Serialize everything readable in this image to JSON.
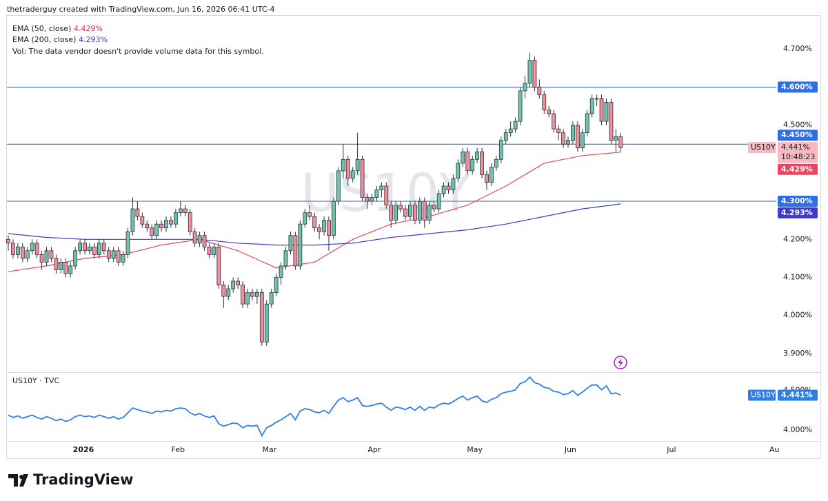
{
  "header": "thetraderguy created with TradingView.com, Jun 16, 2026 06:41 UTC-4",
  "footer": "TradingView",
  "chart_data": {
    "type": "candlestick",
    "symbol": "US10Y",
    "watermark": "US10Y",
    "lower_title": "US10Y · TVC",
    "vol_note": "Vol: The data vendor doesn't provide volume data for this symbol.",
    "up_color": "#6fc2ac",
    "down_color": "#ef8f9b",
    "candles": [
      [
        4.2,
        4.21,
        4.17,
        4.19
      ],
      [
        4.19,
        4.2,
        4.15,
        4.16
      ],
      [
        4.16,
        4.19,
        4.15,
        4.18
      ],
      [
        4.18,
        4.19,
        4.14,
        4.15
      ],
      [
        4.15,
        4.18,
        4.14,
        4.17
      ],
      [
        4.17,
        4.2,
        4.16,
        4.19
      ],
      [
        4.19,
        4.2,
        4.15,
        4.16
      ],
      [
        4.16,
        4.17,
        4.12,
        4.14
      ],
      [
        4.14,
        4.18,
        4.13,
        4.17
      ],
      [
        4.17,
        4.18,
        4.14,
        4.15
      ],
      [
        4.15,
        4.16,
        4.11,
        4.12
      ],
      [
        4.12,
        4.15,
        4.11,
        4.14
      ],
      [
        4.14,
        4.15,
        4.1,
        4.11
      ],
      [
        4.11,
        4.14,
        4.1,
        4.13
      ],
      [
        4.13,
        4.18,
        4.12,
        4.17
      ],
      [
        4.17,
        4.2,
        4.16,
        4.19
      ],
      [
        4.19,
        4.2,
        4.16,
        4.17
      ],
      [
        4.17,
        4.19,
        4.16,
        4.18
      ],
      [
        4.18,
        4.19,
        4.15,
        4.16
      ],
      [
        4.16,
        4.2,
        4.15,
        4.19
      ],
      [
        4.19,
        4.2,
        4.16,
        4.17
      ],
      [
        4.17,
        4.18,
        4.14,
        4.15
      ],
      [
        4.15,
        4.18,
        4.14,
        4.17
      ],
      [
        4.17,
        4.18,
        4.13,
        4.14
      ],
      [
        4.14,
        4.17,
        4.13,
        4.16
      ],
      [
        4.16,
        4.23,
        4.15,
        4.22
      ],
      [
        4.22,
        4.31,
        4.21,
        4.28
      ],
      [
        4.28,
        4.3,
        4.25,
        4.26
      ],
      [
        4.26,
        4.27,
        4.23,
        4.24
      ],
      [
        4.24,
        4.25,
        4.22,
        4.23
      ],
      [
        4.23,
        4.24,
        4.2,
        4.21
      ],
      [
        4.21,
        4.25,
        4.2,
        4.24
      ],
      [
        4.24,
        4.25,
        4.22,
        4.23
      ],
      [
        4.23,
        4.26,
        4.22,
        4.25
      ],
      [
        4.25,
        4.26,
        4.23,
        4.24
      ],
      [
        4.24,
        4.28,
        4.23,
        4.27
      ],
      [
        4.27,
        4.3,
        4.26,
        4.28
      ],
      [
        4.28,
        4.29,
        4.26,
        4.27
      ],
      [
        4.27,
        4.28,
        4.21,
        4.22
      ],
      [
        4.22,
        4.23,
        4.18,
        4.19
      ],
      [
        4.19,
        4.22,
        4.18,
        4.21
      ],
      [
        4.21,
        4.22,
        4.17,
        4.18
      ],
      [
        4.18,
        4.19,
        4.15,
        4.16
      ],
      [
        4.16,
        4.19,
        4.15,
        4.18
      ],
      [
        4.18,
        4.19,
        4.07,
        4.08
      ],
      [
        4.08,
        4.09,
        4.02,
        4.05
      ],
      [
        4.05,
        4.08,
        4.04,
        4.07
      ],
      [
        4.07,
        4.1,
        4.06,
        4.09
      ],
      [
        4.09,
        4.1,
        4.07,
        4.08
      ],
      [
        4.08,
        4.09,
        4.02,
        4.03
      ],
      [
        4.03,
        4.07,
        4.02,
        4.06
      ],
      [
        4.06,
        4.07,
        4.04,
        4.05
      ],
      [
        4.05,
        4.07,
        4.03,
        4.06
      ],
      [
        4.06,
        4.07,
        3.92,
        3.93
      ],
      [
        3.93,
        4.04,
        3.92,
        4.03
      ],
      [
        4.03,
        4.07,
        4.02,
        4.06
      ],
      [
        4.06,
        4.11,
        4.05,
        4.1
      ],
      [
        4.1,
        4.14,
        4.08,
        4.13
      ],
      [
        4.13,
        4.18,
        4.12,
        4.17
      ],
      [
        4.17,
        4.22,
        4.16,
        4.21
      ],
      [
        4.21,
        4.22,
        4.12,
        4.13
      ],
      [
        4.13,
        4.25,
        4.12,
        4.24
      ],
      [
        4.24,
        4.28,
        4.23,
        4.27
      ],
      [
        4.27,
        4.29,
        4.25,
        4.26
      ],
      [
        4.26,
        4.27,
        4.22,
        4.23
      ],
      [
        4.23,
        4.24,
        4.2,
        4.22
      ],
      [
        4.22,
        4.26,
        4.21,
        4.25
      ],
      [
        4.25,
        4.26,
        4.17,
        4.21
      ],
      [
        4.21,
        4.31,
        4.2,
        4.3
      ],
      [
        4.3,
        4.39,
        4.29,
        4.38
      ],
      [
        4.38,
        4.45,
        4.36,
        4.41
      ],
      [
        4.41,
        4.42,
        4.34,
        4.36
      ],
      [
        4.36,
        4.39,
        4.35,
        4.38
      ],
      [
        4.38,
        4.48,
        4.37,
        4.41
      ],
      [
        4.41,
        4.42,
        4.3,
        4.31
      ],
      [
        4.31,
        4.32,
        4.28,
        4.3
      ],
      [
        4.3,
        4.32,
        4.29,
        4.31
      ],
      [
        4.31,
        4.34,
        4.3,
        4.33
      ],
      [
        4.33,
        4.35,
        4.31,
        4.34
      ],
      [
        4.34,
        4.35,
        4.28,
        4.29
      ],
      [
        4.29,
        4.3,
        4.23,
        4.25
      ],
      [
        4.25,
        4.3,
        4.24,
        4.29
      ],
      [
        4.29,
        4.3,
        4.27,
        4.28
      ],
      [
        4.28,
        4.29,
        4.25,
        4.26
      ],
      [
        4.26,
        4.3,
        4.25,
        4.29
      ],
      [
        4.29,
        4.3,
        4.24,
        4.25
      ],
      [
        4.25,
        4.31,
        4.24,
        4.3
      ],
      [
        4.3,
        4.31,
        4.23,
        4.25
      ],
      [
        4.25,
        4.3,
        4.24,
        4.29
      ],
      [
        4.29,
        4.3,
        4.27,
        4.28
      ],
      [
        4.28,
        4.33,
        4.27,
        4.32
      ],
      [
        4.32,
        4.35,
        4.31,
        4.34
      ],
      [
        4.34,
        4.35,
        4.32,
        4.33
      ],
      [
        4.33,
        4.37,
        4.32,
        4.36
      ],
      [
        4.36,
        4.41,
        4.35,
        4.4
      ],
      [
        4.4,
        4.44,
        4.39,
        4.43
      ],
      [
        4.43,
        4.44,
        4.37,
        4.38
      ],
      [
        4.38,
        4.42,
        4.37,
        4.41
      ],
      [
        4.41,
        4.44,
        4.4,
        4.43
      ],
      [
        4.43,
        4.44,
        4.36,
        4.37
      ],
      [
        4.37,
        4.38,
        4.33,
        4.35
      ],
      [
        4.35,
        4.4,
        4.34,
        4.39
      ],
      [
        4.39,
        4.42,
        4.38,
        4.41
      ],
      [
        4.41,
        4.47,
        4.4,
        4.46
      ],
      [
        4.46,
        4.49,
        4.45,
        4.48
      ],
      [
        4.48,
        4.51,
        4.47,
        4.49
      ],
      [
        4.49,
        4.52,
        4.48,
        4.51
      ],
      [
        4.51,
        4.6,
        4.5,
        4.59
      ],
      [
        4.59,
        4.63,
        4.57,
        4.61
      ],
      [
        4.61,
        4.69,
        4.6,
        4.67
      ],
      [
        4.67,
        4.68,
        4.59,
        4.6
      ],
      [
        4.6,
        4.62,
        4.57,
        4.58
      ],
      [
        4.58,
        4.59,
        4.53,
        4.54
      ],
      [
        4.54,
        4.55,
        4.52,
        4.53
      ],
      [
        4.53,
        4.54,
        4.48,
        4.49
      ],
      [
        4.49,
        4.5,
        4.46,
        4.48
      ],
      [
        4.48,
        4.49,
        4.44,
        4.45
      ],
      [
        4.45,
        4.47,
        4.44,
        4.46
      ],
      [
        4.46,
        4.51,
        4.45,
        4.5
      ],
      [
        4.5,
        4.51,
        4.43,
        4.44
      ],
      [
        4.44,
        4.49,
        4.43,
        4.48
      ],
      [
        4.48,
        4.54,
        4.47,
        4.53
      ],
      [
        4.53,
        4.58,
        4.52,
        4.57
      ],
      [
        4.57,
        4.58,
        4.55,
        4.57
      ],
      [
        4.57,
        4.58,
        4.5,
        4.51
      ],
      [
        4.51,
        4.57,
        4.5,
        4.56
      ],
      [
        4.56,
        4.57,
        4.45,
        4.46
      ],
      [
        4.46,
        4.49,
        4.43,
        4.47
      ],
      [
        4.47,
        4.48,
        4.43,
        4.441
      ]
    ],
    "series": [
      {
        "name": "EMA (50, close)",
        "color": "#e8475f",
        "value_label": "4.429%",
        "x": [
          0,
          8,
          16,
          24,
          32,
          40,
          48,
          56,
          64,
          72,
          80,
          88,
          96,
          104,
          112,
          120,
          128
        ],
        "values": [
          4.115,
          4.13,
          4.15,
          4.16,
          4.185,
          4.2,
          4.17,
          4.125,
          4.14,
          4.2,
          4.24,
          4.26,
          4.29,
          4.34,
          4.4,
          4.42,
          4.429
        ]
      },
      {
        "name": "EMA (200, close)",
        "color": "#3b3bd0",
        "value_label": "4.293%",
        "x": [
          0,
          8,
          16,
          24,
          32,
          40,
          48,
          56,
          64,
          72,
          80,
          88,
          96,
          104,
          112,
          120,
          128
        ],
        "values": [
          4.215,
          4.205,
          4.2,
          4.2,
          4.2,
          4.2,
          4.19,
          4.185,
          4.185,
          4.19,
          4.205,
          4.215,
          4.225,
          4.24,
          4.26,
          4.28,
          4.293
        ]
      }
    ],
    "price_lines": [
      {
        "value": 4.6,
        "label": "4.600%"
      },
      {
        "value": 4.3,
        "label": "4.300%"
      },
      {
        "value": 4.45,
        "label": "4.450%"
      }
    ],
    "line_color": "#2f5fc4",
    "last_price": {
      "value": 4.441,
      "label": "4.441%",
      "countdown": "10:48:23"
    },
    "ylim": [
      3.851,
      4.789
    ],
    "yticks": [
      {
        "value": 3.9,
        "label": "3.900%"
      },
      {
        "value": 4.0,
        "label": "4.000%"
      },
      {
        "value": 4.1,
        "label": "4.100%"
      },
      {
        "value": 4.2,
        "label": "4.200%"
      },
      {
        "value": 4.5,
        "label": "4.500%"
      },
      {
        "value": 4.7,
        "label": "4.700%"
      }
    ],
    "lower_color": "#2f7ee6",
    "lower_ylim": [
      3.862,
      4.724
    ],
    "lower_yticks": [
      {
        "value": 4.5,
        "label": "4.500%"
      },
      {
        "value": 4.0,
        "label": "4.000%"
      }
    ],
    "xticks": [
      {
        "value": 15.7,
        "label": "2026"
      },
      {
        "value": 35.5,
        "label": "Feb"
      },
      {
        "value": 54.6,
        "label": "Mar"
      },
      {
        "value": 76.5,
        "label": "Apr"
      },
      {
        "value": 97.5,
        "label": "May"
      },
      {
        "value": 117.5,
        "label": "Jun"
      },
      {
        "value": 138.6,
        "label": "Jul"
      },
      {
        "value": 160.1,
        "label": "Au"
      }
    ]
  }
}
